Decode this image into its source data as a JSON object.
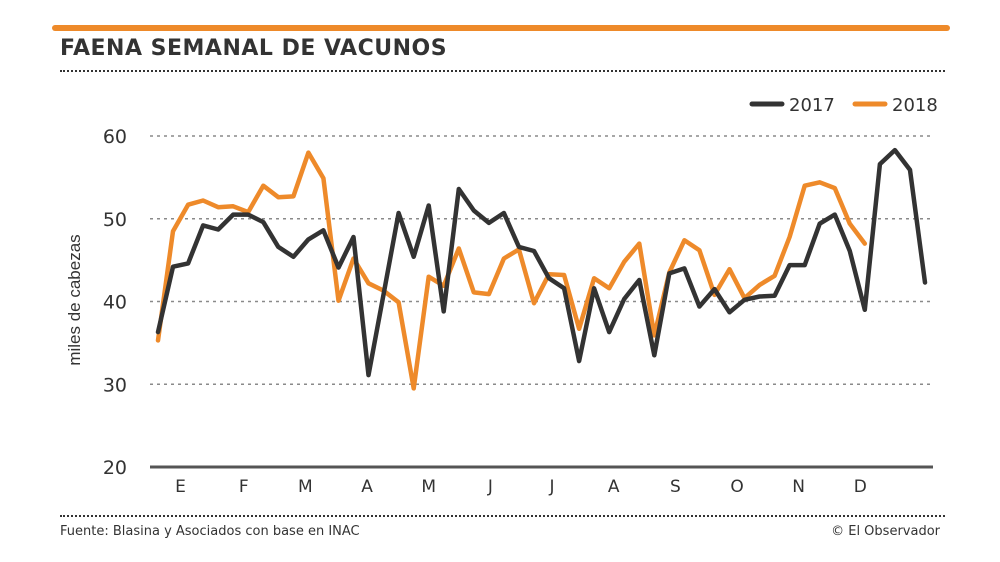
{
  "header": {
    "title": "FAENA SEMANAL DE VACUNOS"
  },
  "footer": {
    "source": "Fuente: Blasina y Asociados con base en INAC",
    "credit": "© El Observador"
  },
  "colors": {
    "accent": "#ee8a2a",
    "series_2017": "#333333",
    "series_2018": "#ee8a2a"
  },
  "chart_data": {
    "type": "line",
    "title": "FAENA SEMANAL DE VACUNOS",
    "xlabel": "",
    "ylabel": "miles de cabezas",
    "ylim": [
      20,
      60
    ],
    "yticks": [
      20,
      30,
      40,
      50,
      60
    ],
    "grid": true,
    "legend": "top-right",
    "x_unit": "week",
    "xlim": [
      1,
      52
    ],
    "months": [
      {
        "label": "E",
        "week": 2.5
      },
      {
        "label": "F",
        "week": 6.7
      },
      {
        "label": "M",
        "week": 10.8
      },
      {
        "label": "A",
        "week": 14.9
      },
      {
        "label": "M",
        "week": 19.0
      },
      {
        "label": "J",
        "week": 23.1
      },
      {
        "label": "J",
        "week": 27.2
      },
      {
        "label": "A",
        "week": 31.3
      },
      {
        "label": "S",
        "week": 35.4
      },
      {
        "label": "O",
        "week": 39.5
      },
      {
        "label": "N",
        "week": 43.6
      },
      {
        "label": "D",
        "week": 47.7
      }
    ],
    "series": [
      {
        "name": "2017",
        "color": "#333333",
        "values": [
          36.3,
          44.2,
          44.6,
          49.2,
          48.7,
          50.5,
          50.5,
          49.6,
          46.6,
          45.4,
          47.5,
          48.6,
          44.1,
          47.8,
          31.1,
          40.9,
          50.7,
          45.4,
          51.6,
          38.8,
          53.6,
          51.0,
          49.5,
          50.7,
          46.6,
          46.1,
          42.8,
          41.6,
          32.8,
          41.6,
          36.3,
          40.3,
          42.6,
          33.5,
          43.4,
          44.0,
          39.4,
          41.5,
          38.7,
          40.2,
          40.6,
          40.7,
          44.4,
          44.4,
          49.4,
          50.5,
          46.1,
          39.0,
          56.6,
          58.3,
          55.9,
          42.3
        ]
      },
      {
        "name": "2018",
        "color": "#ee8a2a",
        "values": [
          35.3,
          48.5,
          51.7,
          52.2,
          51.4,
          51.5,
          50.8,
          54.0,
          52.6,
          52.7,
          58.0,
          54.9,
          40.1,
          45.2,
          42.2,
          41.3,
          39.9,
          29.5,
          43.0,
          41.9,
          46.4,
          41.1,
          40.9,
          45.2,
          46.3,
          39.8,
          43.3,
          43.2,
          36.7,
          42.8,
          41.6,
          44.8,
          47.0,
          35.9,
          43.5,
          47.4,
          46.2,
          40.8,
          43.9,
          40.4,
          42.0,
          43.1,
          47.8,
          54.0,
          54.4,
          53.7,
          49.4,
          47.0
        ]
      }
    ]
  }
}
